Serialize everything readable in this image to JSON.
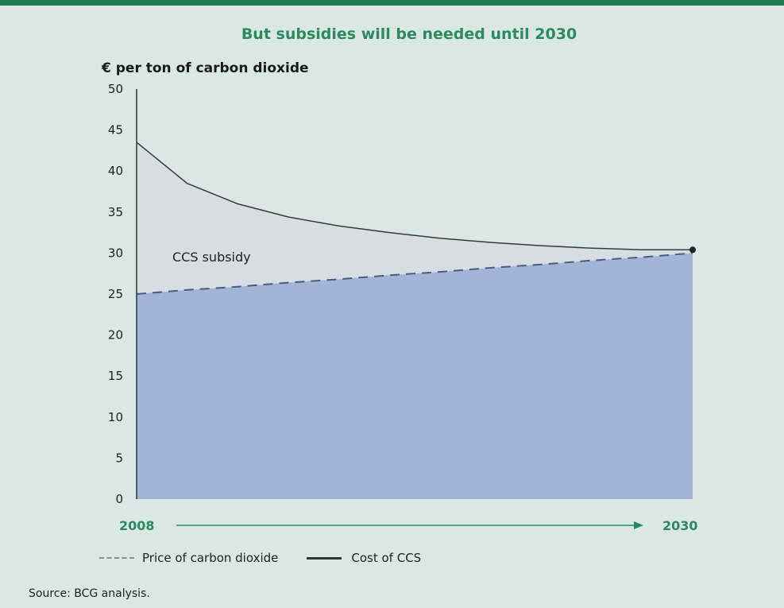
{
  "title": "But subsidies will be needed until 2030",
  "source": "Source: BCG analysis.",
  "chart_data": {
    "type": "area",
    "title": "But subsidies will be needed until 2030",
    "ylabel": "€ per ton of carbon dioxide",
    "xlabel": "",
    "ylim": [
      0,
      50
    ],
    "yticks": [
      "0",
      "5",
      "10",
      "15",
      "20",
      "25",
      "30",
      "35",
      "40",
      "45",
      "50"
    ],
    "x": [
      "2008",
      "2010",
      "2012",
      "2014",
      "2016",
      "2018",
      "2020",
      "2022",
      "2024",
      "2026",
      "2028",
      "2030"
    ],
    "series": [
      {
        "name": "Price of carbon dioxide",
        "style": "dashed",
        "values": [
          25,
          25.5,
          25.9,
          26.4,
          26.8,
          27.3,
          27.7,
          28.2,
          28.6,
          29.1,
          29.5,
          30
        ]
      },
      {
        "name": "Cost of CCS",
        "style": "solid",
        "values": [
          43.5,
          38.5,
          36,
          34.4,
          33.3,
          32.5,
          31.8,
          31.3,
          30.9,
          30.6,
          30.4,
          30.4
        ]
      }
    ],
    "annotations": [
      "CCS subsidy"
    ],
    "x_axis_labels": {
      "start": "2008",
      "end": "2030"
    },
    "legend_position": "bottom-left",
    "colors": {
      "price_area": "#a1b6d6",
      "subsidy_area": "#d8dce3",
      "title": "#2e8a5e"
    }
  }
}
